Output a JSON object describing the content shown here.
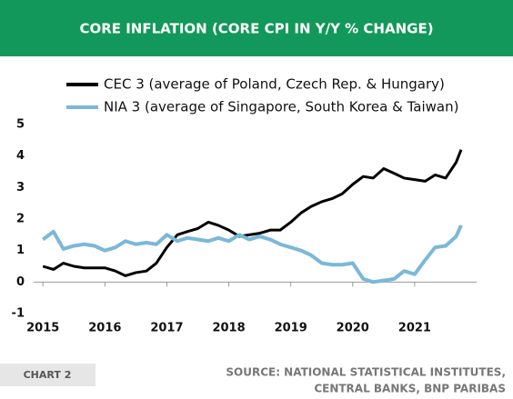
{
  "chart_data": {
    "type": "line",
    "title": "CORE INFLATION (CORE CPI IN Y/Y % CHANGE)",
    "chart_label": "CHART 2",
    "source": [
      "SOURCE: NATIONAL STATISTICAL INSTITUTES,",
      "CENTRAL BANKS, BNP PARIBAS"
    ],
    "x": [
      2015.0,
      2015.17,
      2015.33,
      2015.5,
      2015.67,
      2015.83,
      2016.0,
      2016.17,
      2016.33,
      2016.5,
      2016.67,
      2016.83,
      2017.0,
      2017.17,
      2017.33,
      2017.5,
      2017.67,
      2017.83,
      2018.0,
      2018.17,
      2018.33,
      2018.5,
      2018.67,
      2018.83,
      2019.0,
      2019.17,
      2019.33,
      2019.5,
      2019.67,
      2019.83,
      2020.0,
      2020.17,
      2020.33,
      2020.5,
      2020.67,
      2020.83,
      2021.0,
      2021.17,
      2021.33,
      2021.5,
      2021.67,
      2021.75
    ],
    "series": [
      {
        "name": "CEC 3 (average of Poland, Czech Rep. & Hungary)",
        "color": "#000000",
        "values": [
          0.5,
          0.4,
          0.6,
          0.5,
          0.45,
          0.45,
          0.45,
          0.35,
          0.2,
          0.3,
          0.35,
          0.6,
          1.1,
          1.5,
          1.6,
          1.7,
          1.9,
          1.8,
          1.65,
          1.45,
          1.5,
          1.55,
          1.65,
          1.65,
          1.9,
          2.2,
          2.4,
          2.55,
          2.65,
          2.8,
          3.1,
          3.35,
          3.3,
          3.6,
          3.45,
          3.3,
          3.25,
          3.2,
          3.4,
          3.3,
          3.8,
          4.2
        ]
      },
      {
        "name": "NIA 3 (average of Singapore, South Korea & Taiwan)",
        "color": "#7ab8d9",
        "values": [
          1.35,
          1.6,
          1.05,
          1.15,
          1.2,
          1.15,
          1.0,
          1.1,
          1.3,
          1.2,
          1.25,
          1.2,
          1.5,
          1.3,
          1.4,
          1.35,
          1.3,
          1.4,
          1.3,
          1.5,
          1.35,
          1.45,
          1.35,
          1.2,
          1.1,
          1.0,
          0.85,
          0.6,
          0.55,
          0.55,
          0.6,
          0.1,
          0.0,
          0.05,
          0.1,
          0.35,
          0.25,
          0.7,
          1.1,
          1.15,
          1.45,
          1.8
        ]
      }
    ],
    "xlim": [
      2014.85,
      2022.0
    ],
    "xticks": [
      2015,
      2016,
      2017,
      2018,
      2019,
      2020,
      2021
    ],
    "ylim": [
      -1,
      5
    ],
    "yticks": [
      -1,
      0,
      1,
      2,
      3,
      4,
      5
    ]
  }
}
